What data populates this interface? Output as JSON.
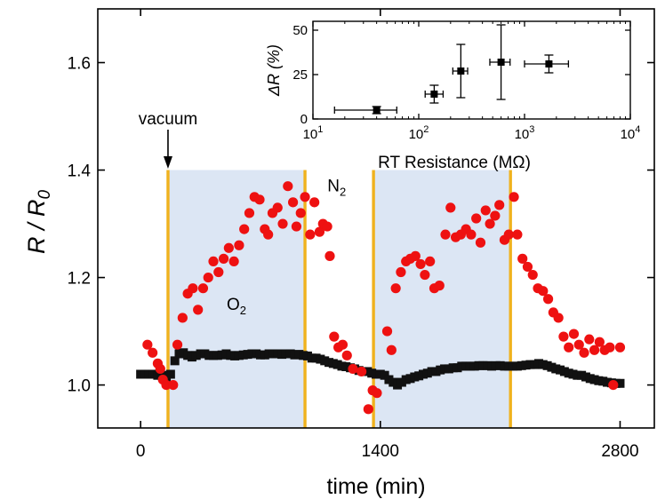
{
  "chart_data": [
    {
      "type": "scatter",
      "title": "",
      "xlabel": "time (min)",
      "ylabel": "R / R",
      "ylabel_subscript": "0",
      "xlim": [
        -250,
        3000
      ],
      "ylim": [
        0.92,
        1.7
      ],
      "xticks": [
        0,
        1400,
        2800
      ],
      "xtick_labels": [
        "0",
        "1400",
        "2800"
      ],
      "yticks": [
        1.0,
        1.2,
        1.4,
        1.6
      ],
      "ytick_labels": [
        "1.0",
        "1.2",
        "1.4",
        "1.6"
      ],
      "grid": false,
      "colors": {
        "red": "#ee1111",
        "black": "#111111",
        "shade": "#dce6f4",
        "line": "#f0b21e"
      },
      "shaded_regions": [
        [
          160,
          960
        ],
        [
          1360,
          2160
        ]
      ],
      "vertical_lines": [
        160,
        960,
        1360,
        2160
      ],
      "annotations": {
        "vacuum": {
          "text": "vacuum",
          "x": 160
        },
        "o2": {
          "text": "O",
          "sub": "2",
          "x": 560,
          "y": 1.14
        },
        "n2": {
          "text": "N",
          "sub": "2",
          "x": 1145,
          "y": 1.36
        }
      },
      "series": [
        {
          "marker": "circle",
          "color": "#ee1111",
          "points": [
            [
              40,
              1.075
            ],
            [
              70,
              1.06
            ],
            [
              100,
              1.04
            ],
            [
              115,
              1.03
            ],
            [
              130,
              1.01
            ],
            [
              150,
              1.0
            ],
            [
              190,
              1.0
            ],
            [
              215,
              1.075
            ],
            [
              245,
              1.125
            ],
            [
              275,
              1.17
            ],
            [
              305,
              1.18
            ],
            [
              335,
              1.14
            ],
            [
              365,
              1.18
            ],
            [
              395,
              1.2
            ],
            [
              425,
              1.23
            ],
            [
              455,
              1.21
            ],
            [
              485,
              1.235
            ],
            [
              515,
              1.255
            ],
            [
              545,
              1.23
            ],
            [
              575,
              1.26
            ],
            [
              605,
              1.29
            ],
            [
              635,
              1.32
            ],
            [
              665,
              1.35
            ],
            [
              695,
              1.345
            ],
            [
              725,
              1.29
            ],
            [
              745,
              1.28
            ],
            [
              770,
              1.32
            ],
            [
              800,
              1.33
            ],
            [
              830,
              1.3
            ],
            [
              860,
              1.37
            ],
            [
              890,
              1.34
            ],
            [
              910,
              1.295
            ],
            [
              935,
              1.32
            ],
            [
              960,
              1.35
            ],
            [
              990,
              1.28
            ],
            [
              1015,
              1.34
            ],
            [
              1045,
              1.285
            ],
            [
              1065,
              1.3
            ],
            [
              1090,
              1.295
            ],
            [
              1105,
              1.24
            ],
            [
              1130,
              1.09
            ],
            [
              1155,
              1.07
            ],
            [
              1180,
              1.075
            ],
            [
              1205,
              1.055
            ],
            [
              1240,
              1.03
            ],
            [
              1290,
              1.025
            ],
            [
              1330,
              0.955
            ],
            [
              1355,
              0.99
            ],
            [
              1380,
              0.985
            ],
            [
              1440,
              1.1
            ],
            [
              1465,
              1.065
            ],
            [
              1490,
              1.18
            ],
            [
              1520,
              1.21
            ],
            [
              1550,
              1.23
            ],
            [
              1575,
              1.235
            ],
            [
              1605,
              1.24
            ],
            [
              1635,
              1.225
            ],
            [
              1660,
              1.205
            ],
            [
              1690,
              1.23
            ],
            [
              1715,
              1.18
            ],
            [
              1745,
              1.185
            ],
            [
              1780,
              1.28
            ],
            [
              1810,
              1.33
            ],
            [
              1840,
              1.275
            ],
            [
              1870,
              1.28
            ],
            [
              1900,
              1.29
            ],
            [
              1930,
              1.28
            ],
            [
              1960,
              1.31
            ],
            [
              1985,
              1.265
            ],
            [
              2015,
              1.325
            ],
            [
              2040,
              1.3
            ],
            [
              2070,
              1.315
            ],
            [
              2095,
              1.335
            ],
            [
              2125,
              1.27
            ],
            [
              2150,
              1.28
            ],
            [
              2180,
              1.35
            ],
            [
              2200,
              1.28
            ],
            [
              2230,
              1.235
            ],
            [
              2260,
              1.22
            ],
            [
              2290,
              1.205
            ],
            [
              2320,
              1.18
            ],
            [
              2350,
              1.175
            ],
            [
              2380,
              1.16
            ],
            [
              2410,
              1.135
            ],
            [
              2440,
              1.125
            ],
            [
              2470,
              1.09
            ],
            [
              2500,
              1.07
            ],
            [
              2530,
              1.095
            ],
            [
              2560,
              1.075
            ],
            [
              2590,
              1.06
            ],
            [
              2620,
              1.085
            ],
            [
              2650,
              1.065
            ],
            [
              2680,
              1.08
            ],
            [
              2710,
              1.065
            ],
            [
              2740,
              1.07
            ],
            [
              2760,
              1.0
            ],
            [
              2800,
              1.07
            ]
          ]
        },
        {
          "marker": "square",
          "color": "#111111",
          "points": [
            [
              0,
              1.02
            ],
            [
              25,
              1.02
            ],
            [
              50,
              1.02
            ],
            [
              75,
              1.02
            ],
            [
              100,
              1.018
            ],
            [
              125,
              1.018
            ],
            [
              150,
              1.015
            ],
            [
              175,
              1.02
            ],
            [
              200,
              1.045
            ],
            [
              225,
              1.058
            ],
            [
              250,
              1.06
            ],
            [
              275,
              1.055
            ],
            [
              300,
              1.052
            ],
            [
              325,
              1.055
            ],
            [
              350,
              1.058
            ],
            [
              375,
              1.058
            ],
            [
              400,
              1.055
            ],
            [
              425,
              1.055
            ],
            [
              450,
              1.055
            ],
            [
              475,
              1.056
            ],
            [
              500,
              1.058
            ],
            [
              525,
              1.055
            ],
            [
              550,
              1.054
            ],
            [
              575,
              1.055
            ],
            [
              600,
              1.056
            ],
            [
              625,
              1.057
            ],
            [
              650,
              1.058
            ],
            [
              675,
              1.058
            ],
            [
              700,
              1.056
            ],
            [
              725,
              1.056
            ],
            [
              750,
              1.058
            ],
            [
              775,
              1.058
            ],
            [
              800,
              1.058
            ],
            [
              825,
              1.057
            ],
            [
              850,
              1.058
            ],
            [
              875,
              1.058
            ],
            [
              900,
              1.056
            ],
            [
              925,
              1.057
            ],
            [
              950,
              1.055
            ],
            [
              975,
              1.054
            ],
            [
              1000,
              1.05
            ],
            [
              1025,
              1.05
            ],
            [
              1050,
              1.048
            ],
            [
              1075,
              1.045
            ],
            [
              1100,
              1.042
            ],
            [
              1125,
              1.04
            ],
            [
              1150,
              1.038
            ],
            [
              1175,
              1.035
            ],
            [
              1200,
              1.034
            ],
            [
              1225,
              1.032
            ],
            [
              1250,
              1.03
            ],
            [
              1275,
              1.027
            ],
            [
              1300,
              1.025
            ],
            [
              1325,
              1.025
            ],
            [
              1350,
              1.022
            ],
            [
              1375,
              1.02
            ],
            [
              1400,
              1.02
            ],
            [
              1425,
              1.018
            ],
            [
              1450,
              1.01
            ],
            [
              1475,
              1.005
            ],
            [
              1500,
              1.0
            ],
            [
              1525,
              1.005
            ],
            [
              1550,
              1.01
            ],
            [
              1575,
              1.012
            ],
            [
              1600,
              1.015
            ],
            [
              1625,
              1.017
            ],
            [
              1650,
              1.02
            ],
            [
              1675,
              1.022
            ],
            [
              1700,
              1.025
            ],
            [
              1725,
              1.025
            ],
            [
              1750,
              1.028
            ],
            [
              1775,
              1.03
            ],
            [
              1800,
              1.03
            ],
            [
              1825,
              1.032
            ],
            [
              1850,
              1.032
            ],
            [
              1875,
              1.035
            ],
            [
              1900,
              1.035
            ],
            [
              1925,
              1.035
            ],
            [
              1950,
              1.035
            ],
            [
              1975,
              1.036
            ],
            [
              2000,
              1.036
            ],
            [
              2025,
              1.036
            ],
            [
              2050,
              1.035
            ],
            [
              2075,
              1.036
            ],
            [
              2100,
              1.036
            ],
            [
              2125,
              1.035
            ],
            [
              2150,
              1.035
            ],
            [
              2175,
              1.035
            ],
            [
              2200,
              1.035
            ],
            [
              2225,
              1.036
            ],
            [
              2250,
              1.037
            ],
            [
              2275,
              1.038
            ],
            [
              2300,
              1.038
            ],
            [
              2325,
              1.04
            ],
            [
              2350,
              1.038
            ],
            [
              2375,
              1.036
            ],
            [
              2400,
              1.033
            ],
            [
              2425,
              1.03
            ],
            [
              2450,
              1.028
            ],
            [
              2475,
              1.025
            ],
            [
              2500,
              1.022
            ],
            [
              2525,
              1.02
            ],
            [
              2550,
              1.018
            ],
            [
              2575,
              1.018
            ],
            [
              2600,
              1.015
            ],
            [
              2625,
              1.012
            ],
            [
              2650,
              1.01
            ],
            [
              2675,
              1.008
            ],
            [
              2700,
              1.007
            ],
            [
              2725,
              1.005
            ],
            [
              2750,
              1.004
            ],
            [
              2775,
              1.003
            ],
            [
              2800,
              1.003
            ]
          ]
        }
      ]
    },
    {
      "type": "scatter",
      "title": "",
      "xlabel": "RT Resistance (MΩ)",
      "ylabel": "ΔR (%)",
      "xscale": "log",
      "xlim": [
        10,
        10000
      ],
      "ylim": [
        0,
        55
      ],
      "xtick_labels": [
        {
          "base": "10",
          "exp": "1"
        },
        {
          "base": "10",
          "exp": "2"
        },
        {
          "base": "10",
          "exp": "3"
        },
        {
          "base": "10",
          "exp": "4"
        }
      ],
      "yticks": [
        0,
        25,
        50
      ],
      "ytick_labels": [
        "0",
        "25",
        "50"
      ],
      "grid": false,
      "series": [
        {
          "marker": "square",
          "color": "#000000",
          "points": [
            {
              "x": 40,
              "y": 5,
              "x_err": [
                16,
                62
              ],
              "y_err": [
                3,
                7
              ]
            },
            {
              "x": 140,
              "y": 14,
              "x_err": [
                115,
                170
              ],
              "y_err": [
                9,
                19
              ]
            },
            {
              "x": 250,
              "y": 27,
              "x_err": [
                210,
                290
              ],
              "y_err": [
                12,
                42
              ]
            },
            {
              "x": 600,
              "y": 32,
              "x_err": [
                470,
                730
              ],
              "y_err": [
                11,
                53
              ]
            },
            {
              "x": 1700,
              "y": 31,
              "x_err": [
                1000,
                2600
              ],
              "y_err": [
                26,
                36
              ]
            }
          ]
        }
      ]
    }
  ]
}
